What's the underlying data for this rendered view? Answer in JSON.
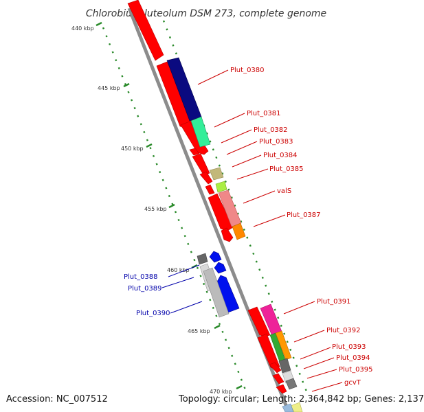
{
  "title": "Chlorobium luteolum DSM 273, complete genome",
  "footer": {
    "accession": "Accession: NC_007512",
    "topology": "Topology: circular; Length: 2,364,842 bp; Genes: 2,137"
  },
  "colors": {
    "forward_label": "#cc0000",
    "reverse_label": "#0000aa",
    "backbone": "#888888",
    "tick": "#2a8a2a"
  },
  "ticks": [
    {
      "label": "440 kbp"
    },
    {
      "label": "445 kbp"
    },
    {
      "label": "450 kbp"
    },
    {
      "label": "455 kbp"
    },
    {
      "label": "460 kbp"
    },
    {
      "label": "465 kbp"
    },
    {
      "label": "470 kbp"
    }
  ],
  "labels": [
    {
      "text": "Plut_0380",
      "strand": "forward"
    },
    {
      "text": "Plut_0381",
      "strand": "forward"
    },
    {
      "text": "Plut_0382",
      "strand": "forward"
    },
    {
      "text": "Plut_0383",
      "strand": "forward"
    },
    {
      "text": "Plut_0384",
      "strand": "forward"
    },
    {
      "text": "Plut_0385",
      "strand": "forward"
    },
    {
      "text": "valS",
      "strand": "forward"
    },
    {
      "text": "Plut_0387",
      "strand": "forward"
    },
    {
      "text": "Plut_0388",
      "strand": "reverse"
    },
    {
      "text": "Plut_0389",
      "strand": "reverse"
    },
    {
      "text": "Plut_0390",
      "strand": "reverse"
    },
    {
      "text": "Plut_0391",
      "strand": "forward"
    },
    {
      "text": "Plut_0392",
      "strand": "forward"
    },
    {
      "text": "Plut_0393",
      "strand": "forward"
    },
    {
      "text": "Plut_0394",
      "strand": "forward"
    },
    {
      "text": "Plut_0395",
      "strand": "forward"
    },
    {
      "text": "gcvT",
      "strand": "forward"
    }
  ]
}
